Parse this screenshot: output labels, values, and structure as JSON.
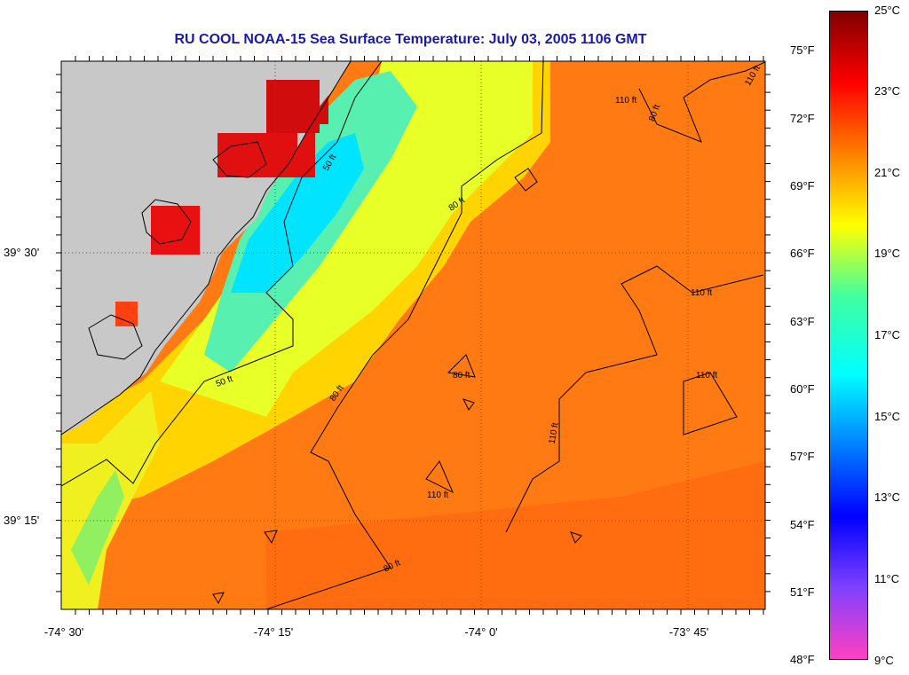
{
  "title": "RU COOL  NOAA-15  Sea Surface Temperature:  July 03, 2005 1106 GMT",
  "lat_labels": [
    "39° 30'",
    "39° 15'"
  ],
  "lon_labels": [
    "-74° 30'",
    "-74° 15'",
    "-74° 0'",
    "-73° 45'"
  ],
  "fahrenheit_labels": [
    "75°F",
    "72°F",
    "69°F",
    "66°F",
    "63°F",
    "60°F",
    "57°F",
    "54°F",
    "51°F",
    "48°F"
  ],
  "celsius_labels": [
    "25°C",
    "23°C",
    "21°C",
    "19°C",
    "17°C",
    "15°C",
    "13°C",
    "11°C",
    "9°C"
  ],
  "contour_labels": [
    "50 ft",
    "50 ft",
    "80 ft",
    "80 ft",
    "80 ft",
    "80 ft",
    "80 ft",
    "110 ft",
    "110 ft",
    "110 ft",
    "110 ft",
    "110 ft",
    "110 ft"
  ],
  "colors": {
    "land": "#c8c8c8",
    "ocean_warm": "#ff7a10",
    "title": "#1a1aa8"
  },
  "colorbar_stops": [
    "#ff40c0",
    "#8040ff",
    "#0000ff",
    "#0080ff",
    "#00ffff",
    "#40ffa0",
    "#ffff00",
    "#ff8000",
    "#ff0000",
    "#800000"
  ]
}
